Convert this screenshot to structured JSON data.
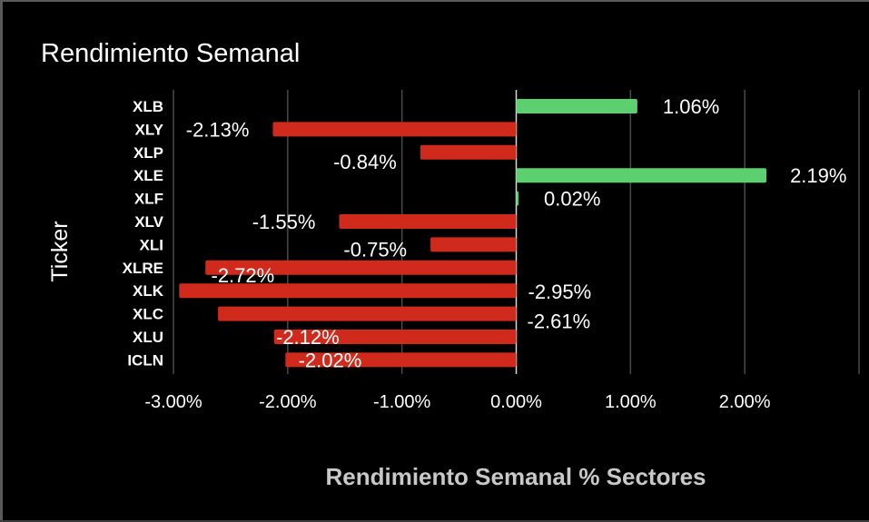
{
  "chart_data": {
    "type": "bar",
    "orientation": "horizontal",
    "title": "Rendimiento Semanal",
    "xlabel": "Rendimiento Semanal % Sectores",
    "ylabel": "Ticker",
    "categories": [
      "XLB",
      "XLY",
      "XLP",
      "XLE",
      "XLF",
      "XLV",
      "XLI",
      "XLRE",
      "XLK",
      "XLC",
      "XLU",
      "ICLN"
    ],
    "values": [
      1.06,
      -2.13,
      -0.84,
      2.19,
      0.02,
      -1.55,
      -0.75,
      -2.72,
      -2.95,
      -2.61,
      -2.12,
      -2.02
    ],
    "data_labels": [
      "1.06%",
      "-2.13%",
      "-0.84%",
      "2.19%",
      "0.02%",
      "-1.55%",
      "-0.75%",
      "-2.72%",
      "-2.95%",
      "-2.61%",
      "-2.12%",
      "-2.02%"
    ],
    "x_ticks": [
      "-3.00%",
      "-2.00%",
      "-1.00%",
      "0.00%",
      "1.00%",
      "2.00%"
    ],
    "xlim": [
      -3.0,
      3.0
    ],
    "grid": true,
    "colors": {
      "positive": "#5ccf6e",
      "negative": "#cf2a1c",
      "background": "#000000"
    }
  }
}
